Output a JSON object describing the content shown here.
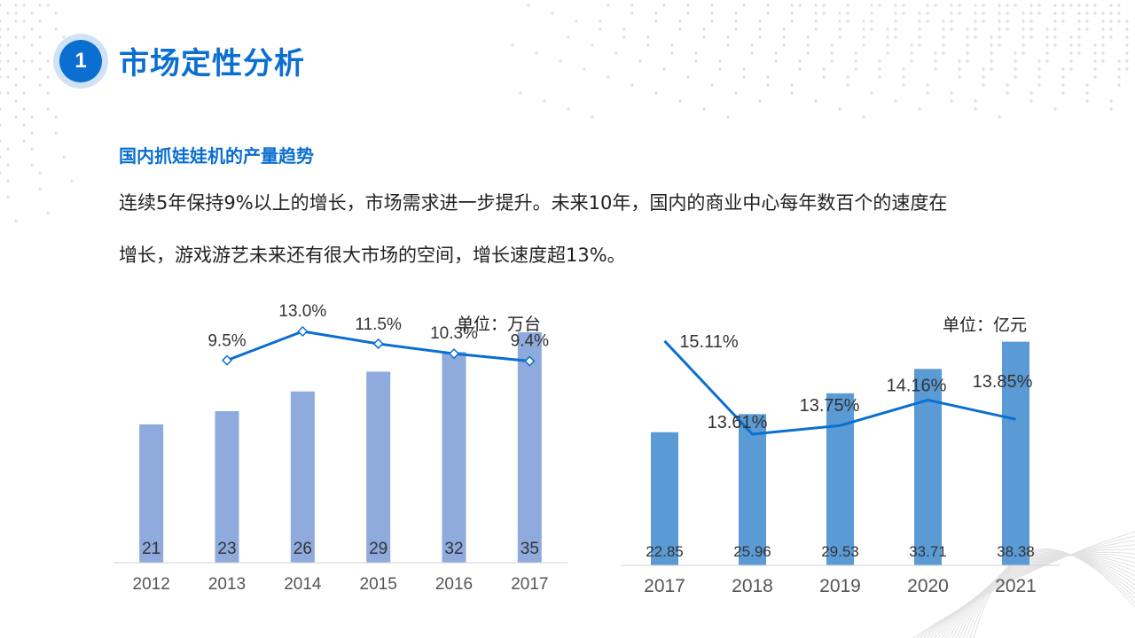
{
  "header": {
    "badge_number": "1",
    "title": "市场定性分析"
  },
  "content": {
    "subtitle": "国内抓娃娃机的产量趋势",
    "paragraph_line1": "连续5年保持9%以上的增长，市场需求进一步提升。未来10年，国内的商业中心每年数百个的速度在",
    "paragraph_line2": "增长，游戏游艺未来还有很大市场的空间，增长速度超13%。"
  },
  "colors": {
    "accent": "#0a6fd0",
    "bar_left": "#8faadc",
    "bar_right": "#5b9bd5",
    "line": "#0a6fd0"
  },
  "chart_data": [
    {
      "type": "bar",
      "unit_label": "单位：万台",
      "categories": [
        "2012",
        "2013",
        "2014",
        "2015",
        "2016",
        "2017"
      ],
      "values": [
        21,
        23,
        26,
        29,
        32,
        35
      ],
      "value_labels": [
        "21",
        "23",
        "26",
        "29",
        "32",
        "35"
      ],
      "line_series": {
        "values": [
          null,
          9.5,
          13.0,
          11.5,
          10.3,
          9.4
        ],
        "labels": [
          "",
          "9.5%",
          "13.0%",
          "11.5%",
          "10.3%",
          "9.4%"
        ],
        "marker": "diamond"
      },
      "ylim": [
        0,
        37
      ],
      "line_ylim": [
        -15,
        14.5
      ],
      "grid": false
    },
    {
      "type": "bar",
      "unit_label": "单位：亿元",
      "categories": [
        "2017",
        "2018",
        "2019",
        "2020",
        "2021"
      ],
      "values": [
        22.85,
        25.96,
        29.53,
        33.71,
        38.38
      ],
      "value_labels": [
        "22.85",
        "25.96",
        "29.53",
        "33.71",
        "38.38"
      ],
      "line_series": {
        "values": [
          15.11,
          13.61,
          13.75,
          14.16,
          13.85
        ],
        "labels": [
          "15.11%",
          "13.61%",
          "13.75%",
          "14.16%",
          "13.85%"
        ],
        "marker": "none"
      },
      "ylim": [
        0,
        40
      ],
      "line_ylim": [
        11.5,
        15.25
      ],
      "grid": false
    }
  ]
}
